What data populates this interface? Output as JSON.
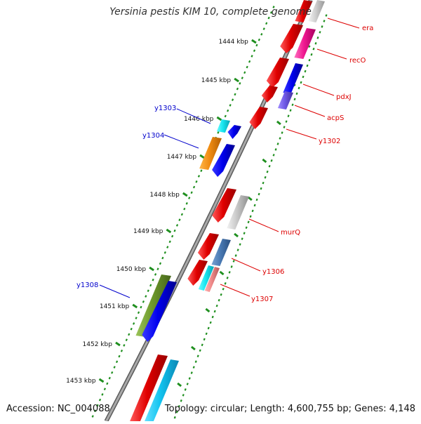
{
  "title": "Yersinia pestis KIM 10, complete genome",
  "accession": "Accession: NC_004088",
  "summary": "Topology: circular; Length: 4,600,755 bp; Genes: 4,148",
  "colors": {
    "backbone": "#8a8a8a",
    "tick_dots": "#1f8f1f",
    "label_red": "#dd0000",
    "label_blue": "#0000cc"
  },
  "ticks": [
    "1444 kbp",
    "1445 kbp",
    "1446 kbp",
    "1447 kbp",
    "1448 kbp",
    "1449 kbp",
    "1450 kbp",
    "1451 kbp",
    "1452 kbp",
    "1453 kbp"
  ],
  "gene_labels": {
    "right": [
      "era",
      "recO",
      "pdxJ",
      "acpS",
      "y1302",
      "murQ",
      "y1306",
      "y1307"
    ],
    "left": [
      "y1303",
      "y1304",
      "y1308"
    ]
  }
}
